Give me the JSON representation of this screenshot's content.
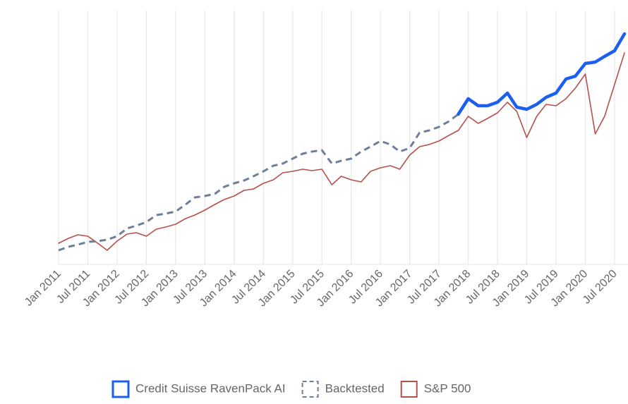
{
  "chart_data": {
    "type": "line",
    "x": [
      2011,
      2011.17,
      2011.33,
      2011.5,
      2011.67,
      2011.83,
      2012,
      2012.17,
      2012.33,
      2012.5,
      2012.67,
      2012.83,
      2013,
      2013.17,
      2013.33,
      2013.5,
      2013.67,
      2013.83,
      2014,
      2014.17,
      2014.33,
      2014.5,
      2014.67,
      2014.83,
      2015,
      2015.17,
      2015.33,
      2015.5,
      2015.67,
      2015.83,
      2016,
      2016.17,
      2016.33,
      2016.5,
      2016.67,
      2016.83,
      2017,
      2017.17,
      2017.33,
      2017.5,
      2017.67,
      2017.83,
      2018,
      2018.17,
      2018.33,
      2018.5,
      2018.67,
      2018.83,
      2019,
      2019.17,
      2019.33,
      2019.5,
      2019.67,
      2019.83,
      2020,
      2020.17,
      2020.33,
      2020.5,
      2020.67
    ],
    "xlim": [
      2011,
      2020.73
    ],
    "xticks": [
      {
        "value": 2011,
        "label": "Jan 2011"
      },
      {
        "value": 2011.5,
        "label": "Jul 2011"
      },
      {
        "value": 2012,
        "label": "Jan 2012"
      },
      {
        "value": 2012.5,
        "label": "Jul 2012"
      },
      {
        "value": 2013,
        "label": "Jan 2013"
      },
      {
        "value": 2013.5,
        "label": "Jul 2013"
      },
      {
        "value": 2014,
        "label": "Jan 2014"
      },
      {
        "value": 2014.5,
        "label": "Jul 2014"
      },
      {
        "value": 2015,
        "label": "Jan 2015"
      },
      {
        "value": 2015.5,
        "label": "Jul 2015"
      },
      {
        "value": 2016,
        "label": "Jan 2016"
      },
      {
        "value": 2016.5,
        "label": "Jul 2016"
      },
      {
        "value": 2017,
        "label": "Jan 2017"
      },
      {
        "value": 2017.5,
        "label": "Jul 2017"
      },
      {
        "value": 2018,
        "label": "Jan 2018"
      },
      {
        "value": 2018.5,
        "label": "Jul 2018"
      },
      {
        "value": 2019,
        "label": "Jan 2019"
      },
      {
        "value": 2019.5,
        "label": "Jul 2019"
      },
      {
        "value": 2020,
        "label": "Jan 2020"
      },
      {
        "value": 2020.5,
        "label": "Jul 2020"
      }
    ],
    "ylim": [
      0,
      360
    ],
    "grid": true,
    "legend": "bottom",
    "series": [
      {
        "name": "Credit Suisse RavenPack AI",
        "color": "#1a5ff0",
        "values": [
          null,
          null,
          null,
          null,
          null,
          null,
          null,
          null,
          null,
          null,
          null,
          null,
          null,
          null,
          null,
          null,
          null,
          null,
          null,
          null,
          null,
          null,
          null,
          null,
          null,
          null,
          null,
          null,
          null,
          null,
          null,
          null,
          null,
          null,
          null,
          null,
          null,
          null,
          null,
          null,
          null,
          213,
          235,
          225,
          225,
          230,
          243,
          223,
          220,
          227,
          237,
          243,
          263,
          267,
          285,
          287,
          295,
          303,
          327
        ]
      },
      {
        "name": "Backtested",
        "color": "#6f7f98",
        "dashed": true,
        "values": [
          20,
          25,
          28,
          32,
          33,
          35,
          40,
          51,
          55,
          60,
          70,
          72,
          75,
          85,
          95,
          97,
          100,
          110,
          115,
          119,
          125,
          132,
          140,
          143,
          150,
          157,
          160,
          162,
          143,
          147,
          150,
          160,
          167,
          175,
          170,
          160,
          165,
          187,
          190,
          195,
          203,
          213,
          null,
          null,
          null,
          null,
          null,
          null,
          null,
          null,
          null,
          null,
          null,
          null,
          null,
          null,
          null,
          null,
          null
        ]
      },
      {
        "name": "S&P 500",
        "color": "#b5504c",
        "values": [
          30,
          37,
          42,
          40,
          30,
          20,
          33,
          43,
          45,
          40,
          50,
          53,
          57,
          65,
          70,
          77,
          85,
          92,
          97,
          105,
          107,
          115,
          120,
          130,
          132,
          135,
          133,
          135,
          113,
          125,
          120,
          117,
          132,
          137,
          140,
          135,
          155,
          167,
          170,
          175,
          183,
          190,
          210,
          200,
          207,
          215,
          230,
          217,
          180,
          210,
          227,
          225,
          235,
          250,
          270,
          185,
          210,
          255,
          300
        ]
      }
    ]
  }
}
